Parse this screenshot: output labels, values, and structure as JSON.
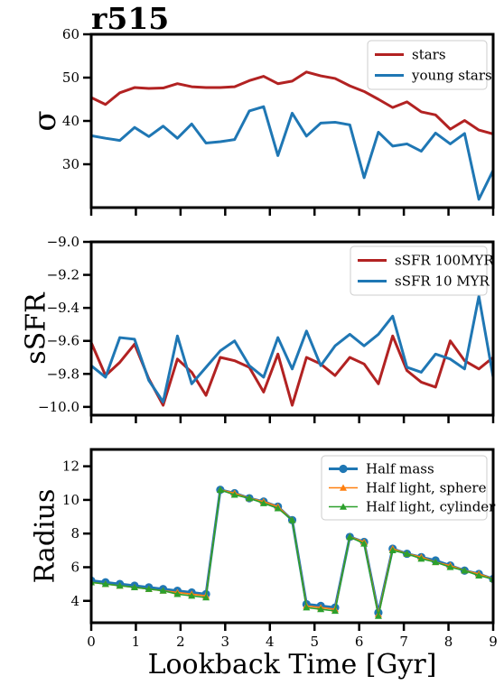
{
  "figure_title": "r515",
  "chart_data": [
    {
      "type": "line",
      "ylabel": "σ",
      "xlabel": "",
      "xlim": [
        0,
        9
      ],
      "ylim": [
        20,
        60
      ],
      "yticks": [
        30,
        40,
        50,
        60
      ],
      "xticks": [
        0,
        1,
        2,
        3,
        4,
        5,
        6,
        7,
        8,
        9
      ],
      "show_xticklabels": false,
      "legend_position": "top-right",
      "x": [
        0.0,
        0.32,
        0.64,
        0.97,
        1.29,
        1.61,
        1.93,
        2.25,
        2.57,
        2.89,
        3.21,
        3.54,
        3.86,
        4.18,
        4.5,
        4.82,
        5.14,
        5.46,
        5.79,
        6.11,
        6.43,
        6.75,
        7.07,
        7.39,
        7.71,
        8.04,
        8.36,
        8.68,
        9.0
      ],
      "series": [
        {
          "name": "stars",
          "color": "#b22222",
          "values": [
            45.4,
            43.8,
            46.5,
            47.7,
            47.5,
            47.6,
            48.6,
            47.9,
            47.7,
            47.7,
            47.9,
            49.3,
            50.3,
            48.6,
            49.2,
            51.3,
            50.4,
            49.8,
            48.1,
            46.8,
            45.0,
            43.1,
            44.4,
            42.1,
            41.4,
            38.1,
            40.1,
            37.9,
            37.0
          ]
        },
        {
          "name": "young stars",
          "color": "#1f77b4",
          "values": [
            36.6,
            36.0,
            35.5,
            38.5,
            36.4,
            38.8,
            36.0,
            39.3,
            34.9,
            35.2,
            35.7,
            42.3,
            43.3,
            32.0,
            41.8,
            36.5,
            39.5,
            39.7,
            39.1,
            26.9,
            37.4,
            34.2,
            34.7,
            33.0,
            37.2,
            34.7,
            37.1,
            21.9,
            28.6
          ]
        }
      ]
    },
    {
      "type": "line",
      "ylabel": "sSFR",
      "xlabel": "",
      "xlim": [
        0,
        9
      ],
      "ylim": [
        -10.05,
        -9.0
      ],
      "yticks": [
        -10.0,
        -9.8,
        -9.6,
        -9.4,
        -9.2,
        -9.0
      ],
      "ytick_labels": [
        "−10.0",
        "−9.8",
        "−9.6",
        "−9.4",
        "−9.2",
        "−9.0"
      ],
      "xticks": [
        0,
        1,
        2,
        3,
        4,
        5,
        6,
        7,
        8,
        9
      ],
      "show_xticklabels": false,
      "legend_position": "top-right",
      "x": [
        0.0,
        0.32,
        0.64,
        0.97,
        1.29,
        1.61,
        1.93,
        2.25,
        2.57,
        2.89,
        3.21,
        3.54,
        3.86,
        4.18,
        4.5,
        4.82,
        5.14,
        5.46,
        5.79,
        6.11,
        6.43,
        6.75,
        7.07,
        7.39,
        7.71,
        8.04,
        8.36,
        8.68,
        9.0
      ],
      "series": [
        {
          "name": "sSFR 100MYR",
          "color": "#b22222",
          "values": [
            -9.61,
            -9.81,
            -9.73,
            -9.62,
            -9.83,
            -9.99,
            -9.71,
            -9.79,
            -9.93,
            -9.7,
            -9.72,
            -9.76,
            -9.91,
            -9.68,
            -9.99,
            -9.7,
            -9.74,
            -9.81,
            -9.7,
            -9.74,
            -9.86,
            -9.57,
            -9.78,
            -9.85,
            -9.88,
            -9.6,
            -9.72,
            -9.77,
            -9.7
          ]
        },
        {
          "name": "sSFR 10 MYR",
          "color": "#1f77b4",
          "values": [
            -9.75,
            -9.82,
            -9.58,
            -9.59,
            -9.84,
            -9.97,
            -9.57,
            -9.86,
            -9.76,
            -9.66,
            -9.6,
            -9.75,
            -9.82,
            -9.58,
            -9.77,
            -9.54,
            -9.75,
            -9.63,
            -9.56,
            -9.63,
            -9.56,
            -9.45,
            -9.76,
            -9.79,
            -9.68,
            -9.71,
            -9.77,
            -9.33,
            -9.82
          ]
        }
      ]
    },
    {
      "type": "line",
      "ylabel": "Radius",
      "xlabel": "Lookback Time [Gyr]",
      "xlim": [
        0,
        9
      ],
      "ylim": [
        2.7,
        13.0
      ],
      "yticks": [
        4,
        6,
        8,
        10,
        12
      ],
      "xticks": [
        0,
        1,
        2,
        3,
        4,
        5,
        6,
        7,
        8,
        9
      ],
      "show_xticklabels": true,
      "legend_position": "top-right",
      "x": [
        0.0,
        0.32,
        0.64,
        0.97,
        1.29,
        1.61,
        1.93,
        2.25,
        2.57,
        2.89,
        3.21,
        3.54,
        3.86,
        4.18,
        4.5,
        4.82,
        5.14,
        5.46,
        5.79,
        6.11,
        6.43,
        6.75,
        7.07,
        7.39,
        7.71,
        8.04,
        8.36,
        8.68,
        9.0
      ],
      "series": [
        {
          "name": "Half mass",
          "color": "#1f77b4",
          "marker": "circle",
          "values": [
            5.2,
            5.1,
            5.0,
            4.9,
            4.8,
            4.7,
            4.6,
            4.5,
            4.4,
            10.6,
            10.4,
            10.1,
            9.9,
            9.6,
            8.8,
            3.8,
            3.7,
            3.6,
            7.8,
            7.5,
            3.3,
            7.1,
            6.8,
            6.6,
            6.4,
            6.1,
            5.8,
            5.6,
            5.3
          ]
        },
        {
          "name": "Half light, sphere",
          "color": "#ff7f0e",
          "marker": "triangle",
          "values": [
            5.1,
            5.0,
            4.9,
            4.8,
            4.7,
            4.6,
            4.5,
            4.4,
            4.3,
            10.6,
            10.4,
            10.1,
            9.9,
            9.6,
            8.8,
            3.7,
            3.6,
            3.5,
            7.8,
            7.5,
            3.2,
            7.1,
            6.8,
            6.6,
            6.3,
            6.1,
            5.8,
            5.6,
            5.3
          ]
        },
        {
          "name": "Half light, cylinder",
          "color": "#2ca02c",
          "marker": "triangle",
          "values": [
            5.1,
            5.0,
            4.9,
            4.8,
            4.7,
            4.6,
            4.4,
            4.3,
            4.2,
            10.6,
            10.3,
            10.1,
            9.8,
            9.5,
            8.8,
            3.6,
            3.5,
            3.4,
            7.8,
            7.4,
            3.1,
            7.0,
            6.8,
            6.5,
            6.3,
            6.0,
            5.8,
            5.5,
            5.3
          ]
        }
      ]
    }
  ]
}
